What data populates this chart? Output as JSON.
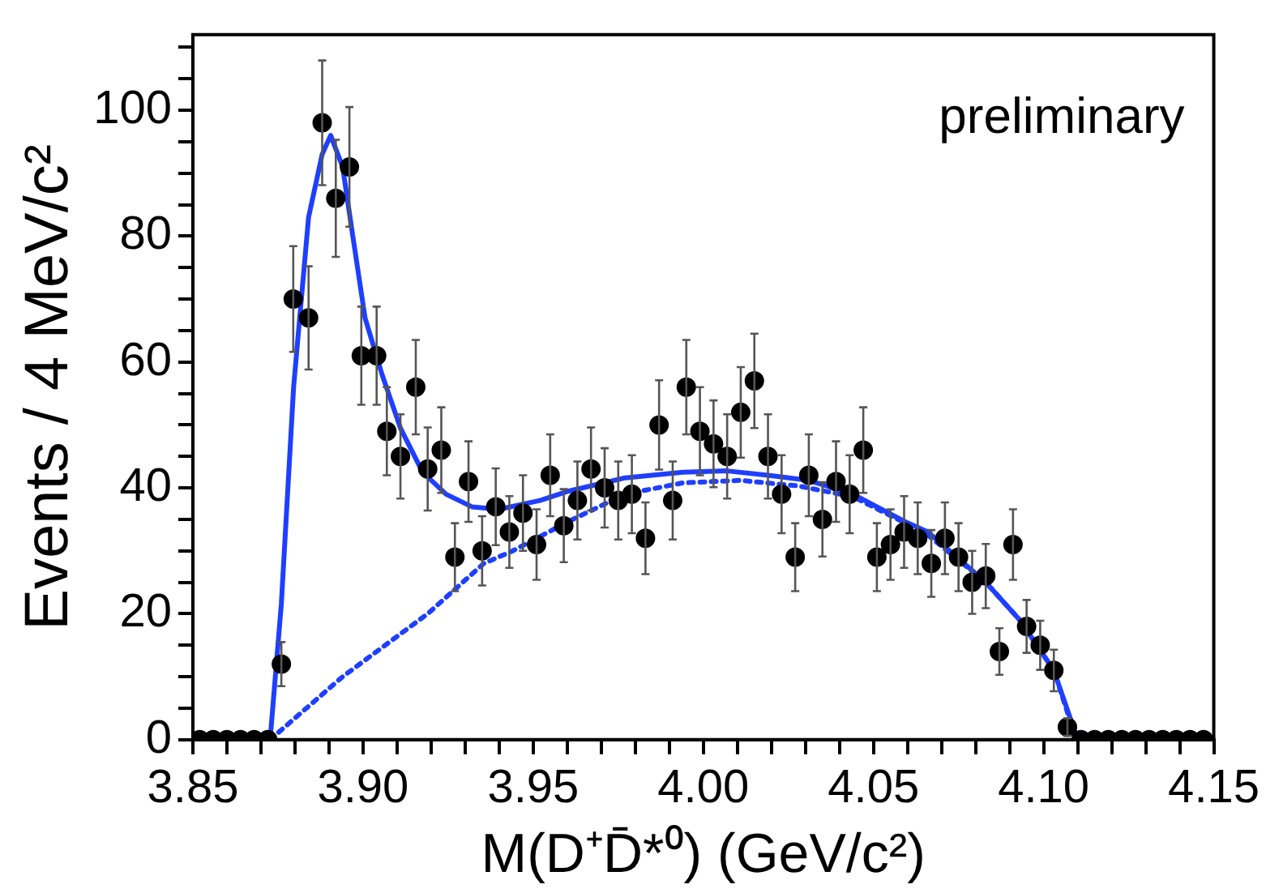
{
  "chart_data": {
    "type": "scatter",
    "xlabel": "M(D⁺D̄*⁰) (GeV/c²)",
    "ylabel": "Events / 4 MeV/c²",
    "annotations": [
      "preliminary"
    ],
    "xlim": [
      3.85,
      4.15
    ],
    "ylim": [
      0,
      112
    ],
    "xticks": [
      {
        "value": 3.85,
        "label": "3.85"
      },
      {
        "value": 3.86,
        "label": null
      },
      {
        "value": 3.87,
        "label": null
      },
      {
        "value": 3.88,
        "label": null
      },
      {
        "value": 3.89,
        "label": null
      },
      {
        "value": 3.9,
        "label": "3.90"
      },
      {
        "value": 3.91,
        "label": null
      },
      {
        "value": 3.92,
        "label": null
      },
      {
        "value": 3.93,
        "label": null
      },
      {
        "value": 3.94,
        "label": null
      },
      {
        "value": 3.95,
        "label": "3.95"
      },
      {
        "value": 3.96,
        "label": null
      },
      {
        "value": 3.97,
        "label": null
      },
      {
        "value": 3.98,
        "label": null
      },
      {
        "value": 3.99,
        "label": null
      },
      {
        "value": 4.0,
        "label": "4.00"
      },
      {
        "value": 4.01,
        "label": null
      },
      {
        "value": 4.02,
        "label": null
      },
      {
        "value": 4.03,
        "label": null
      },
      {
        "value": 4.04,
        "label": null
      },
      {
        "value": 4.05,
        "label": "4.05"
      },
      {
        "value": 4.06,
        "label": null
      },
      {
        "value": 4.07,
        "label": null
      },
      {
        "value": 4.08,
        "label": null
      },
      {
        "value": 4.09,
        "label": null
      },
      {
        "value": 4.1,
        "label": "4.10"
      },
      {
        "value": 4.11,
        "label": null
      },
      {
        "value": 4.12,
        "label": null
      },
      {
        "value": 4.13,
        "label": null
      },
      {
        "value": 4.14,
        "label": null
      },
      {
        "value": 4.15,
        "label": "4.15"
      }
    ],
    "yticks": [
      0,
      {
        "value": 5,
        "label": null
      },
      {
        "value": 10,
        "label": null
      },
      {
        "value": 15,
        "label": null
      },
      20,
      {
        "value": 25,
        "label": null
      },
      {
        "value": 30,
        "label": null
      },
      {
        "value": 35,
        "label": null
      },
      40,
      {
        "value": 45,
        "label": null
      },
      {
        "value": 50,
        "label": null
      },
      {
        "value": 55,
        "label": null
      },
      60,
      {
        "value": 65,
        "label": null
      },
      {
        "value": 70,
        "label": null
      },
      {
        "value": 75,
        "label": null
      },
      80,
      {
        "value": 85,
        "label": null
      },
      {
        "value": 90,
        "label": null
      },
      {
        "value": 95,
        "label": null
      },
      100,
      {
        "value": 105,
        "label": null
      },
      {
        "value": 110,
        "label": null
      }
    ],
    "grid": false,
    "legend": false,
    "series": [
      {
        "type": "scatter",
        "color": "#000000",
        "marker": "circle",
        "x": [
          3.852,
          3.856,
          3.86,
          3.864,
          3.868,
          3.872,
          3.876,
          3.8795,
          3.884,
          3.888,
          3.892,
          3.896,
          3.8995,
          3.904,
          3.907,
          3.911,
          3.9155,
          3.919,
          3.923,
          3.927,
          3.931,
          3.935,
          3.939,
          3.943,
          3.947,
          3.951,
          3.955,
          3.959,
          3.963,
          3.967,
          3.971,
          3.975,
          3.979,
          3.983,
          3.987,
          3.991,
          3.995,
          3.999,
          4.003,
          4.007,
          4.011,
          4.015,
          4.019,
          4.023,
          4.027,
          4.031,
          4.035,
          4.039,
          4.043,
          4.047,
          4.051,
          4.055,
          4.059,
          4.063,
          4.067,
          4.071,
          4.075,
          4.079,
          4.083,
          4.087,
          4.091,
          4.095,
          4.099,
          4.103,
          4.107,
          4.111,
          4.115,
          4.119,
          4.123,
          4.127,
          4.131,
          4.135,
          4.139,
          4.143,
          4.147
        ],
        "values": [
          0,
          0,
          0,
          0,
          0,
          0,
          12,
          70,
          67,
          98,
          86,
          91,
          61,
          61,
          49,
          45,
          56,
          43,
          46,
          29,
          41,
          30,
          37,
          33,
          36,
          31,
          42,
          34,
          38,
          43,
          40,
          38,
          39,
          32,
          50,
          38,
          56,
          49,
          47,
          45,
          52,
          57,
          45,
          39,
          29,
          42,
          35,
          41,
          39,
          46,
          29,
          31,
          33,
          32,
          28,
          32,
          29,
          25,
          26,
          14,
          31,
          18,
          15,
          11,
          2,
          0,
          0,
          0,
          0,
          0,
          0,
          0,
          0,
          0,
          0
        ],
        "errors": [
          null,
          null,
          null,
          null,
          null,
          null,
          3.5,
          8.4,
          8.2,
          9.9,
          9.3,
          9.5,
          7.8,
          7.8,
          7,
          6.7,
          7.5,
          6.6,
          6.8,
          5.4,
          6.4,
          5.5,
          6.1,
          5.7,
          6,
          5.6,
          6.5,
          5.8,
          6.2,
          6.6,
          6.3,
          6.2,
          6.2,
          5.7,
          7.1,
          6.2,
          7.5,
          7,
          6.9,
          6.7,
          7.2,
          7.5,
          6.7,
          6.2,
          5.4,
          6.5,
          5.9,
          6.4,
          6.2,
          6.8,
          5.4,
          5.6,
          5.7,
          5.7,
          5.3,
          5.7,
          5.4,
          5,
          5.1,
          3.7,
          5.6,
          4.2,
          3.9,
          3.3,
          1.4,
          null,
          null,
          null,
          null,
          null,
          null,
          null,
          null,
          null,
          null
        ]
      },
      {
        "type": "line",
        "color": "#1f3fff",
        "marker": "none",
        "line_style": "solid",
        "x": [
          3.8727,
          3.876,
          3.8796,
          3.884,
          3.888,
          3.8905,
          3.894,
          3.897,
          3.9006,
          3.9056,
          3.911,
          3.9175,
          3.9244,
          3.932,
          3.94,
          3.952,
          3.9605,
          3.977,
          3.994,
          4.007,
          4.019,
          4.031,
          4.044,
          4.059,
          4.066,
          4.083,
          4.093,
          4.103,
          4.11
        ],
        "values": [
          0,
          21.6,
          56,
          83,
          93,
          96,
          91,
          80,
          67,
          58,
          49.5,
          42.5,
          39,
          37,
          36.6,
          38,
          39.5,
          41.6,
          42.5,
          42.7,
          42,
          41.2,
          39,
          34.7,
          33,
          25,
          19,
          11,
          0
        ]
      },
      {
        "type": "line",
        "color": "#1f3fff",
        "marker": "none",
        "line_style": "dotted",
        "x": [
          3.8727,
          3.894,
          3.919,
          3.9355,
          3.944,
          3.9605,
          3.977,
          3.994,
          4.011,
          4.028,
          4.044,
          4.059,
          4.066,
          4.083,
          4.093,
          4.103,
          4.109,
          4.11
        ],
        "values": [
          0,
          10,
          20,
          28,
          30,
          34.7,
          39,
          40.8,
          41.2,
          40.3,
          38.6,
          34.5,
          32.5,
          25,
          19,
          11,
          1,
          0
        ]
      }
    ]
  }
}
